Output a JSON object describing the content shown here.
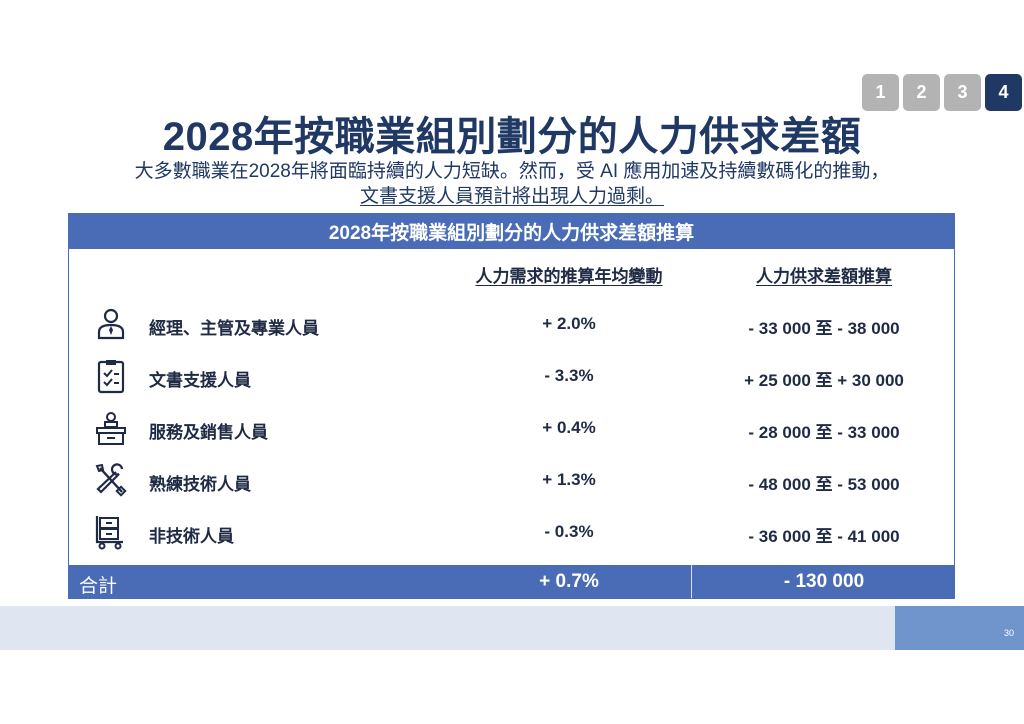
{
  "pager": {
    "pages": [
      "1",
      "2",
      "3",
      "4"
    ],
    "active": "4"
  },
  "title": "2028年按職業組別劃分的人力供求差額",
  "subtitle_line1": "大多數職業在2028年將面臨持續的人力短缺。然而，受 AI 應用加速及持續數碼化的推動，",
  "subtitle_line2": "文書支援人員預計將出現人力過剩。",
  "table": {
    "header": "2028年按職業組別劃分的人力供求差額推算",
    "col_change": "人力需求的推算年均變動",
    "col_gap": "人力供求差額推算",
    "rows": [
      {
        "icon": "manager-person-icon",
        "label": "經理、主管及專業人員",
        "change": "+ 2.0%",
        "gap": "- 33 000 至 - 38 000"
      },
      {
        "icon": "clipboard-check-icon",
        "label": "文書支援人員",
        "change": "- 3.3%",
        "gap": "+ 25 000 至 + 30 000"
      },
      {
        "icon": "service-counter-icon",
        "label": "服務及銷售人員",
        "change": "+ 0.4%",
        "gap": "- 28 000 至 - 33 000"
      },
      {
        "icon": "tools-wrench-screwdriver-icon",
        "label": "熟練技術人員",
        "change": "+ 1.3%",
        "gap": "- 48 000 至 - 53 000"
      },
      {
        "icon": "cart-boxes-icon",
        "label": "非技術人員",
        "change": "- 0.3%",
        "gap": "- 36 000 至 - 41 000"
      }
    ],
    "total": {
      "label": "合計",
      "change": "+ 0.7%",
      "gap": "- 130 000"
    }
  },
  "page_number": "30",
  "colors": {
    "primary": "#1f3864",
    "accent": "#4a6bb5",
    "footer_band": "#dfe6f2",
    "footer_page": "#6f95cc",
    "pager_inactive": "#b3b3b3"
  }
}
